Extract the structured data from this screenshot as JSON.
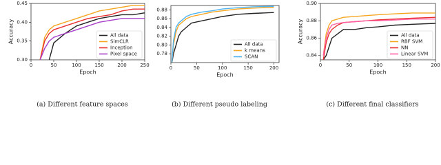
{
  "chart_data": [
    {
      "type": "line",
      "x_label": "Epoch",
      "y_label": "Accuracy",
      "caption": "(a) Different feature spaces",
      "x": [
        20,
        30,
        40,
        50,
        75,
        100,
        125,
        150,
        175,
        200,
        225,
        250
      ],
      "series": [
        {
          "name": "All data",
          "color": "#222222",
          "values": [
            null,
            null,
            0.3,
            0.345,
            0.37,
            0.39,
            0.4,
            0.41,
            0.415,
            0.42,
            0.42,
            0.425
          ]
        },
        {
          "name": "SimCLR",
          "color": "#f5a623",
          "values": [
            0.3,
            0.36,
            0.38,
            0.39,
            0.4,
            0.41,
            0.42,
            0.43,
            0.435,
            0.44,
            0.445,
            0.445
          ]
        },
        {
          "name": "Inception",
          "color": "#e8312f",
          "values": [
            0.3,
            0.35,
            0.37,
            0.38,
            0.39,
            0.4,
            0.41,
            0.415,
            0.42,
            0.43,
            0.435,
            0.435
          ]
        },
        {
          "name": "Pixel space",
          "color": "#a63ec9",
          "values": [
            0.3,
            0.33,
            0.35,
            0.36,
            0.37,
            0.38,
            0.39,
            0.4,
            0.405,
            0.41,
            0.41,
            0.41
          ]
        }
      ],
      "xlim": [
        0,
        250
      ],
      "xticks": [
        0,
        50,
        100,
        150,
        200,
        250
      ],
      "ylim": [
        0.3,
        0.45
      ],
      "yticks": [
        {
          "value": 0.3,
          "label": "0.30"
        },
        0.35,
        {
          "value": 0.4,
          "label": "0.40"
        },
        0.45
      ],
      "legend": "lower right",
      "grid": false
    },
    {
      "type": "line",
      "x_label": "Epoch",
      "caption": "(b) Different pseudo labeling",
      "x": [
        2,
        5,
        10,
        15,
        20,
        30,
        40,
        60,
        80,
        100,
        130,
        160,
        200
      ],
      "series": [
        {
          "name": "All data",
          "color": "#222222",
          "values": [
            0.76,
            0.78,
            0.8,
            0.82,
            0.83,
            0.84,
            0.85,
            0.855,
            0.86,
            0.865,
            0.87,
            0.872,
            0.874
          ]
        },
        {
          "name": "k means",
          "color": "#f5a623",
          "values": [
            0.76,
            0.8,
            0.83,
            0.845,
            0.85,
            0.86,
            0.865,
            0.87,
            0.875,
            0.878,
            0.882,
            0.884,
            0.886
          ]
        },
        {
          "name": "SCAN",
          "color": "#4fb3f0",
          "values": [
            0.76,
            0.81,
            0.84,
            0.85,
            0.855,
            0.865,
            0.87,
            0.875,
            0.878,
            0.882,
            0.885,
            0.887,
            0.888
          ]
        }
      ],
      "xlim": [
        0,
        210
      ],
      "xticks": [
        0,
        50,
        100,
        150,
        200
      ],
      "ylim": [
        0.76,
        0.89
      ],
      "yticks": [
        0.78,
        {
          "value": 0.8,
          "label": "0.80"
        },
        0.82,
        0.84,
        0.86,
        0.88
      ],
      "legend": "lower right",
      "grid": false
    },
    {
      "type": "line",
      "x_label": "Epoch",
      "y_label": "Accuracy",
      "caption": "(c) Different final classifiers",
      "x": [
        5,
        10,
        15,
        20,
        30,
        40,
        60,
        80,
        100,
        130,
        160,
        200
      ],
      "series": [
        {
          "name": "All data",
          "color": "#222222",
          "values": [
            0.835,
            0.84,
            0.85,
            0.86,
            0.865,
            0.87,
            0.87,
            0.872,
            0.873,
            0.875,
            0.876,
            0.877
          ]
        },
        {
          "name": "RBF SVM",
          "color": "#f5a623",
          "values": [
            0.84,
            0.865,
            0.875,
            0.88,
            0.882,
            0.884,
            0.885,
            0.886,
            0.887,
            0.888,
            0.889,
            0.889
          ]
        },
        {
          "name": "NN",
          "color": "#e8312f",
          "values": [
            0.835,
            0.855,
            0.865,
            0.87,
            0.875,
            0.878,
            0.879,
            0.88,
            0.881,
            0.882,
            0.883,
            0.884
          ]
        },
        {
          "name": "Linear SVM",
          "color": "#ff5fa2",
          "values": [
            0.84,
            0.86,
            0.87,
            0.875,
            0.877,
            0.878,
            0.879,
            0.88,
            0.88,
            0.881,
            0.882,
            0.882
          ]
        }
      ],
      "xlim": [
        0,
        200
      ],
      "xticks": [
        0,
        50,
        100,
        150,
        200
      ],
      "ylim": [
        0.835,
        0.9
      ],
      "yticks": [
        0.84,
        0.86,
        0.88,
        {
          "value": 0.9,
          "label": "0.90"
        }
      ],
      "legend": "lower right",
      "grid": false
    }
  ]
}
